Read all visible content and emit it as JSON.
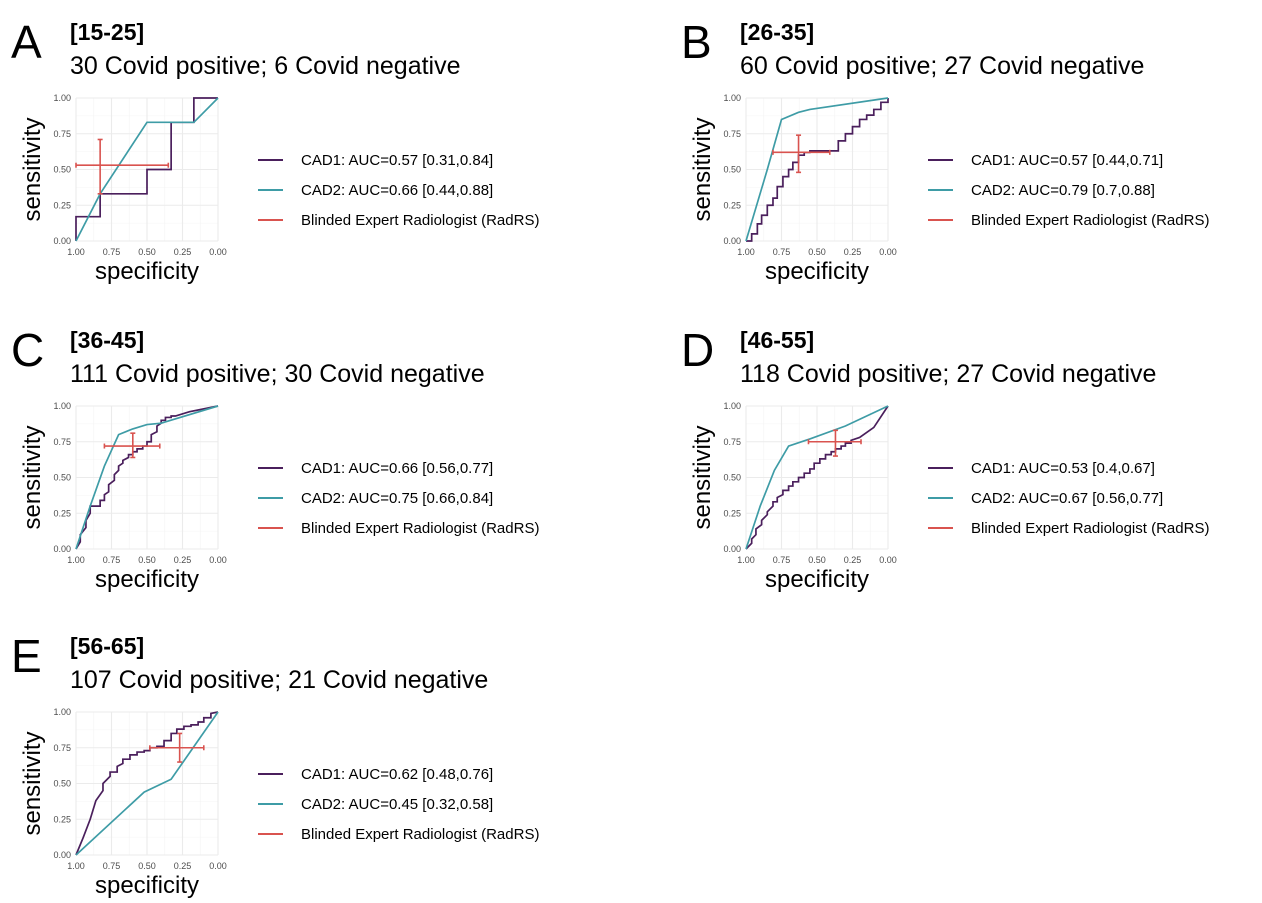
{
  "chart_data": [
    {
      "panel": "A",
      "type": "line",
      "title": "[15-25]",
      "subtitle": "30 Covid positive; 6 Covid negative",
      "xlabel": "specificity",
      "ylabel": "sensitivity",
      "xlim": [
        1.0,
        0.0
      ],
      "ylim": [
        0.0,
        1.0
      ],
      "x_ticks": [
        "1.00",
        "0.75",
        "0.50",
        "0.25",
        "0.00"
      ],
      "y_ticks": [
        "0.00",
        "0.25",
        "0.50",
        "0.75",
        "1.00"
      ],
      "grid": true,
      "legend_position": "right",
      "series": [
        {
          "name": "CAD1: AUC=0.57 [0.31,0.84]",
          "color": "#4a1f5c",
          "x": [
            1.0,
            1.0,
            0.83,
            0.83,
            0.83,
            0.5,
            0.5,
            0.5,
            0.33,
            0.33,
            0.17,
            0.17,
            0.0
          ],
          "y": [
            0.0,
            0.17,
            0.17,
            0.33,
            0.33,
            0.33,
            0.5,
            0.5,
            0.5,
            0.83,
            0.83,
            1.0,
            1.0
          ]
        },
        {
          "name": "CAD2: AUC=0.66 [0.44,0.88]",
          "color": "#3e9ca6",
          "x": [
            1.0,
            0.83,
            0.5,
            0.17,
            0.0
          ],
          "y": [
            0.0,
            0.33,
            0.83,
            0.83,
            1.0
          ]
        },
        {
          "name": "Blinded Expert Radiologist (RadRS)",
          "color": "#d9534f",
          "type": "crosshair",
          "point": {
            "x": 0.83,
            "y": 0.53
          },
          "x_range": [
            1.0,
            0.35
          ],
          "y_range": [
            0.33,
            0.71
          ]
        }
      ]
    },
    {
      "panel": "B",
      "type": "line",
      "title": "[26-35]",
      "subtitle": "60 Covid positive; 27 Covid negative",
      "xlabel": "specificity",
      "ylabel": "sensitivity",
      "xlim": [
        1.0,
        0.0
      ],
      "ylim": [
        0.0,
        1.0
      ],
      "x_ticks": [
        "1.00",
        "0.75",
        "0.50",
        "0.25",
        "0.00"
      ],
      "y_ticks": [
        "0.00",
        "0.25",
        "0.50",
        "0.75",
        "1.00"
      ],
      "grid": true,
      "legend_position": "right",
      "series": [
        {
          "name": "CAD1: AUC=0.57 [0.44,0.71]",
          "color": "#4a1f5c",
          "x": [
            1.0,
            0.96,
            0.96,
            0.92,
            0.92,
            0.89,
            0.89,
            0.85,
            0.85,
            0.81,
            0.81,
            0.78,
            0.78,
            0.74,
            0.74,
            0.7,
            0.7,
            0.67,
            0.67,
            0.63,
            0.63,
            0.59,
            0.59,
            0.55,
            0.55,
            0.5,
            0.45,
            0.35,
            0.35,
            0.3,
            0.3,
            0.25,
            0.25,
            0.2,
            0.2,
            0.15,
            0.15,
            0.1,
            0.1,
            0.05,
            0.05,
            0.0,
            0.0
          ],
          "y": [
            0.0,
            0.0,
            0.05,
            0.05,
            0.12,
            0.12,
            0.18,
            0.18,
            0.25,
            0.25,
            0.3,
            0.3,
            0.38,
            0.38,
            0.45,
            0.45,
            0.5,
            0.5,
            0.55,
            0.55,
            0.6,
            0.6,
            0.62,
            0.62,
            0.63,
            0.63,
            0.63,
            0.63,
            0.7,
            0.7,
            0.75,
            0.75,
            0.8,
            0.8,
            0.85,
            0.85,
            0.88,
            0.88,
            0.92,
            0.92,
            0.97,
            0.97,
            1.0
          ]
        },
        {
          "name": "CAD2: AUC=0.79 [0.7,0.88]",
          "color": "#3e9ca6",
          "x": [
            1.0,
            0.85,
            0.75,
            0.63,
            0.55,
            0.0
          ],
          "y": [
            0.0,
            0.5,
            0.85,
            0.9,
            0.92,
            1.0
          ]
        },
        {
          "name": "Blinded Expert Radiologist (RadRS)",
          "color": "#d9534f",
          "type": "crosshair",
          "point": {
            "x": 0.63,
            "y": 0.62
          },
          "x_range": [
            0.81,
            0.41
          ],
          "y_range": [
            0.48,
            0.74
          ]
        }
      ]
    },
    {
      "panel": "C",
      "type": "line",
      "title": "[36-45]",
      "subtitle": "111 Covid positive; 30 Covid negative",
      "xlabel": "specificity",
      "ylabel": "sensitivity",
      "xlim": [
        1.0,
        0.0
      ],
      "ylim": [
        0.0,
        1.0
      ],
      "x_ticks": [
        "1.00",
        "0.75",
        "0.50",
        "0.25",
        "0.00"
      ],
      "y_ticks": [
        "0.00",
        "0.25",
        "0.50",
        "0.75",
        "1.00"
      ],
      "grid": true,
      "legend_position": "right",
      "series": [
        {
          "name": "CAD1: AUC=0.66 [0.56,0.77]",
          "color": "#4a1f5c",
          "x": [
            1.0,
            0.97,
            0.97,
            0.93,
            0.93,
            0.9,
            0.9,
            0.83,
            0.83,
            0.8,
            0.8,
            0.77,
            0.77,
            0.73,
            0.73,
            0.7,
            0.7,
            0.67,
            0.67,
            0.63,
            0.63,
            0.6,
            0.6,
            0.57,
            0.57,
            0.53,
            0.53,
            0.5,
            0.5,
            0.47,
            0.47,
            0.43,
            0.43,
            0.4,
            0.4,
            0.37,
            0.37,
            0.33,
            0.33,
            0.3,
            0.2,
            0.1,
            0.0
          ],
          "y": [
            0.0,
            0.05,
            0.1,
            0.15,
            0.2,
            0.25,
            0.3,
            0.3,
            0.34,
            0.34,
            0.38,
            0.4,
            0.45,
            0.48,
            0.52,
            0.55,
            0.58,
            0.6,
            0.62,
            0.64,
            0.66,
            0.66,
            0.68,
            0.68,
            0.7,
            0.7,
            0.72,
            0.72,
            0.75,
            0.75,
            0.8,
            0.82,
            0.86,
            0.88,
            0.9,
            0.9,
            0.92,
            0.92,
            0.93,
            0.93,
            0.96,
            0.98,
            1.0
          ]
        },
        {
          "name": "CAD2: AUC=0.75 [0.66,0.84]",
          "color": "#3e9ca6",
          "x": [
            1.0,
            0.9,
            0.8,
            0.7,
            0.6,
            0.5,
            0.4,
            0.0
          ],
          "y": [
            0.0,
            0.3,
            0.58,
            0.8,
            0.84,
            0.87,
            0.88,
            1.0
          ]
        },
        {
          "name": "Blinded Expert Radiologist (RadRS)",
          "color": "#d9534f",
          "type": "crosshair",
          "point": {
            "x": 0.6,
            "y": 0.72
          },
          "x_range": [
            0.8,
            0.41
          ],
          "y_range": [
            0.64,
            0.81
          ]
        }
      ]
    },
    {
      "panel": "D",
      "type": "line",
      "title": "[46-55]",
      "subtitle": "118 Covid positive; 27 Covid negative",
      "xlabel": "specificity",
      "ylabel": "sensitivity",
      "xlim": [
        1.0,
        0.0
      ],
      "ylim": [
        0.0,
        1.0
      ],
      "x_ticks": [
        "1.00",
        "0.75",
        "0.50",
        "0.25",
        "0.00"
      ],
      "y_ticks": [
        "0.00",
        "0.25",
        "0.50",
        "0.75",
        "1.00"
      ],
      "grid": true,
      "legend_position": "right",
      "series": [
        {
          "name": "CAD1: AUC=0.53 [0.4,0.67]",
          "color": "#4a1f5c",
          "x": [
            1.0,
            0.96,
            0.96,
            0.93,
            0.93,
            0.89,
            0.89,
            0.85,
            0.85,
            0.81,
            0.81,
            0.78,
            0.78,
            0.74,
            0.74,
            0.7,
            0.7,
            0.67,
            0.67,
            0.63,
            0.63,
            0.59,
            0.59,
            0.55,
            0.55,
            0.52,
            0.52,
            0.48,
            0.48,
            0.44,
            0.44,
            0.4,
            0.4,
            0.37,
            0.37,
            0.33,
            0.33,
            0.3,
            0.3,
            0.26,
            0.26,
            0.2,
            0.1,
            0.0
          ],
          "y": [
            0.0,
            0.04,
            0.07,
            0.1,
            0.14,
            0.17,
            0.2,
            0.24,
            0.26,
            0.3,
            0.33,
            0.33,
            0.36,
            0.38,
            0.41,
            0.41,
            0.44,
            0.44,
            0.47,
            0.47,
            0.5,
            0.5,
            0.53,
            0.53,
            0.56,
            0.56,
            0.6,
            0.6,
            0.63,
            0.63,
            0.66,
            0.66,
            0.68,
            0.68,
            0.7,
            0.7,
            0.72,
            0.72,
            0.74,
            0.74,
            0.76,
            0.78,
            0.85,
            1.0
          ]
        },
        {
          "name": "CAD2: AUC=0.67 [0.56,0.77]",
          "color": "#3e9ca6",
          "x": [
            1.0,
            0.9,
            0.8,
            0.7,
            0.55,
            0.3,
            0.0
          ],
          "y": [
            0.0,
            0.3,
            0.55,
            0.72,
            0.77,
            0.86,
            1.0
          ]
        },
        {
          "name": "Blinded Expert Radiologist (RadRS)",
          "color": "#d9534f",
          "type": "crosshair",
          "point": {
            "x": 0.37,
            "y": 0.75
          },
          "x_range": [
            0.56,
            0.19
          ],
          "y_range": [
            0.65,
            0.83
          ]
        }
      ]
    },
    {
      "panel": "E",
      "type": "line",
      "title": "[56-65]",
      "subtitle": "107 Covid positive; 21 Covid negative",
      "xlabel": "specificity",
      "ylabel": "sensitivity",
      "xlim": [
        1.0,
        0.0
      ],
      "ylim": [
        0.0,
        1.0
      ],
      "x_ticks": [
        "1.00",
        "0.75",
        "0.50",
        "0.25",
        "0.00"
      ],
      "y_ticks": [
        "0.00",
        "0.25",
        "0.50",
        "0.75",
        "1.00"
      ],
      "grid": true,
      "legend_position": "right",
      "series": [
        {
          "name": "CAD1: AUC=0.62 [0.48,0.76]",
          "color": "#4a1f5c",
          "x": [
            1.0,
            0.95,
            0.9,
            0.86,
            0.81,
            0.81,
            0.76,
            0.76,
            0.71,
            0.71,
            0.67,
            0.67,
            0.62,
            0.62,
            0.57,
            0.57,
            0.52,
            0.52,
            0.48,
            0.48,
            0.43,
            0.43,
            0.38,
            0.38,
            0.33,
            0.33,
            0.29,
            0.29,
            0.24,
            0.24,
            0.19,
            0.19,
            0.14,
            0.14,
            0.1,
            0.1,
            0.05,
            0.05,
            0.0
          ],
          "y": [
            0.0,
            0.12,
            0.25,
            0.38,
            0.45,
            0.5,
            0.55,
            0.58,
            0.58,
            0.62,
            0.64,
            0.67,
            0.67,
            0.7,
            0.7,
            0.72,
            0.72,
            0.73,
            0.73,
            0.75,
            0.75,
            0.76,
            0.76,
            0.8,
            0.8,
            0.85,
            0.85,
            0.88,
            0.88,
            0.9,
            0.9,
            0.91,
            0.91,
            0.93,
            0.93,
            0.96,
            0.96,
            0.99,
            1.0
          ]
        },
        {
          "name": "CAD2: AUC=0.45 [0.32,0.58]",
          "color": "#3e9ca6",
          "x": [
            1.0,
            0.52,
            0.33,
            0.0
          ],
          "y": [
            0.0,
            0.44,
            0.53,
            1.0
          ]
        },
        {
          "name": "Blinded Expert Radiologist (RadRS)",
          "color": "#d9534f",
          "type": "crosshair",
          "point": {
            "x": 0.27,
            "y": 0.75
          },
          "x_range": [
            0.48,
            0.1
          ],
          "y_range": [
            0.65,
            0.85
          ]
        }
      ]
    }
  ]
}
